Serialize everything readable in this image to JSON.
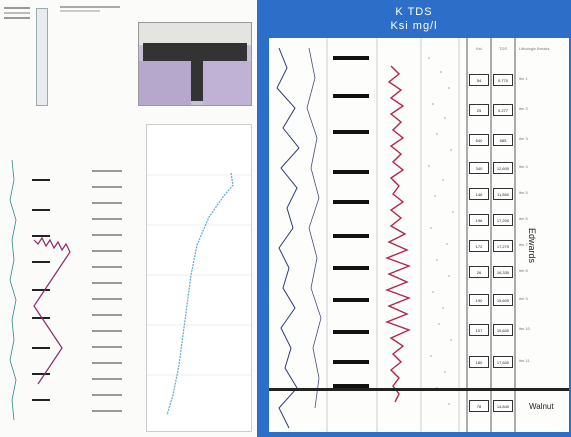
{
  "right_header": {
    "line1": "K  TDS",
    "line2": "Ksi  mg/l"
  },
  "table_headers": [
    "Ksi",
    "TDS",
    "Lithologic Breaks"
  ],
  "table_rows": [
    {
      "a": "54",
      "b": "0.770",
      "c": "itm 1"
    },
    {
      "a": "25",
      "b": "0.277",
      "c": "itm 2"
    },
    {
      "a": "640",
      "b": "685",
      "c": "itm 3"
    },
    {
      "a": "340",
      "b": "12,600",
      "c": "itm 4"
    },
    {
      "a": "146",
      "b": "11,560",
      "c": "itm 5"
    },
    {
      "a": "196",
      "b": "17,200",
      "c": "itm 6"
    },
    {
      "a": "172",
      "b": "17,270",
      "c": "itm 7"
    },
    {
      "a": "26",
      "b": "16,330",
      "c": "itm 8"
    },
    {
      "a": "190",
      "b": "15,600",
      "c": "itm 9"
    },
    {
      "a": "107",
      "b": "15,600",
      "c": "itm 10"
    },
    {
      "a": "180",
      "b": "17,600",
      "c": "itm 11"
    },
    {
      "a": "78",
      "b": "14,840",
      "c": "Walnut"
    }
  ],
  "formation_label": "Edwards",
  "bottom_label": "Walnut",
  "colors": {
    "panel_blue": "#2d6ec8",
    "curve_red": "#b0284a",
    "curve_navy": "#2b3a78",
    "scatter_blue": "#5aa8d8"
  }
}
